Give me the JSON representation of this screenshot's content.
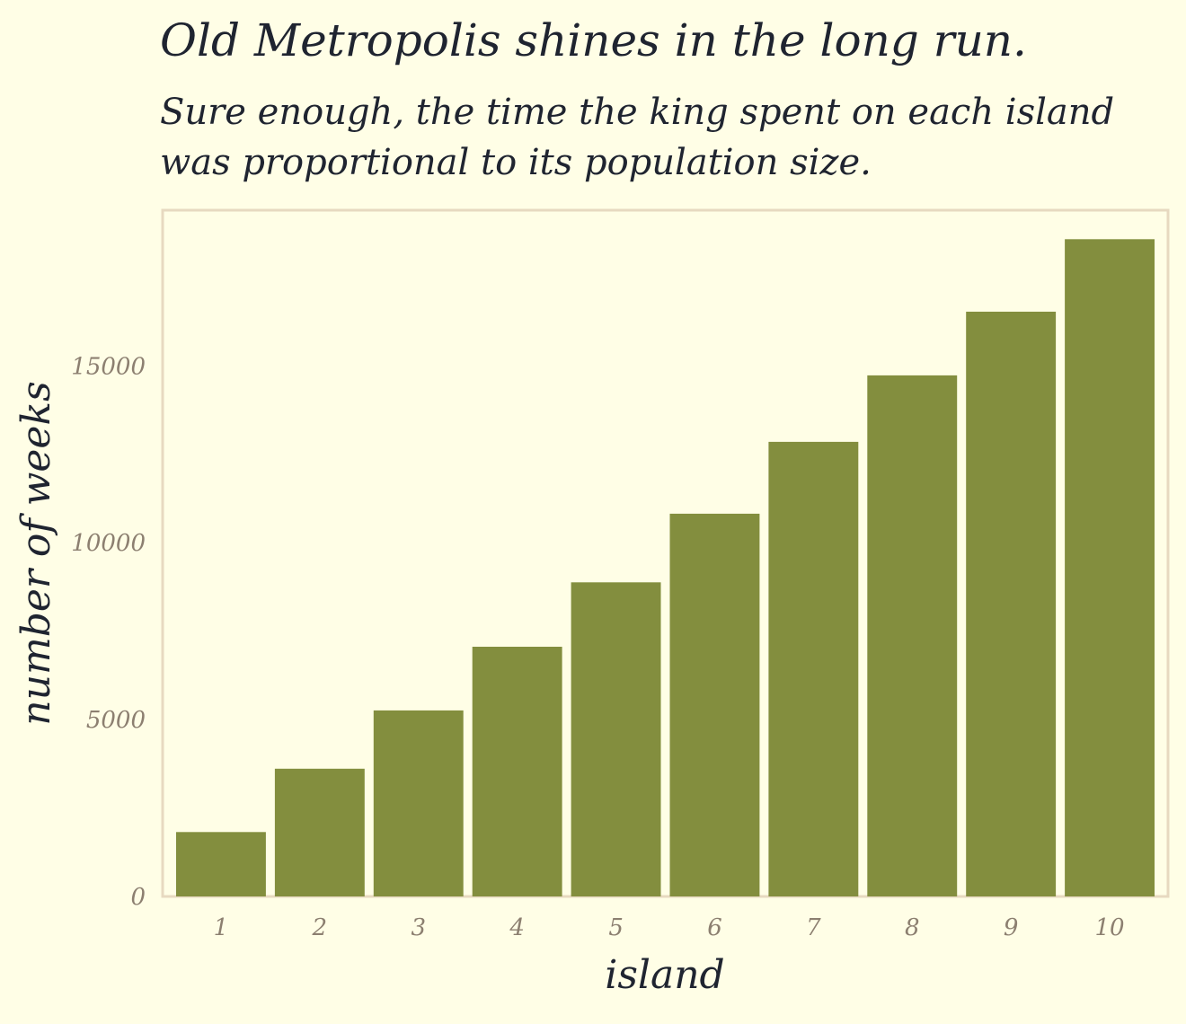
{
  "chart_data": {
    "type": "bar",
    "title": "Old Metropolis shines in the long run.",
    "subtitle": [
      "Sure enough, the time the king spent on each island",
      "was proportional to its population size."
    ],
    "xlabel": "island",
    "ylabel": "number of weeks",
    "categories": [
      "1",
      "2",
      "3",
      "4",
      "5",
      "6",
      "7",
      "8",
      "9",
      "10"
    ],
    "values": [
      1820,
      3610,
      5260,
      7060,
      8880,
      10820,
      12850,
      14730,
      16530,
      18580
    ],
    "yticks": [
      0,
      5000,
      10000,
      15000
    ],
    "ylim": [
      0,
      19400
    ],
    "grid": false,
    "legend": "none",
    "colors": {
      "bar": "#838e3e",
      "background": "#fffee6",
      "frame": "#e7d9c0",
      "text": "#1f2430",
      "tick_text": "#8c7f70"
    }
  }
}
